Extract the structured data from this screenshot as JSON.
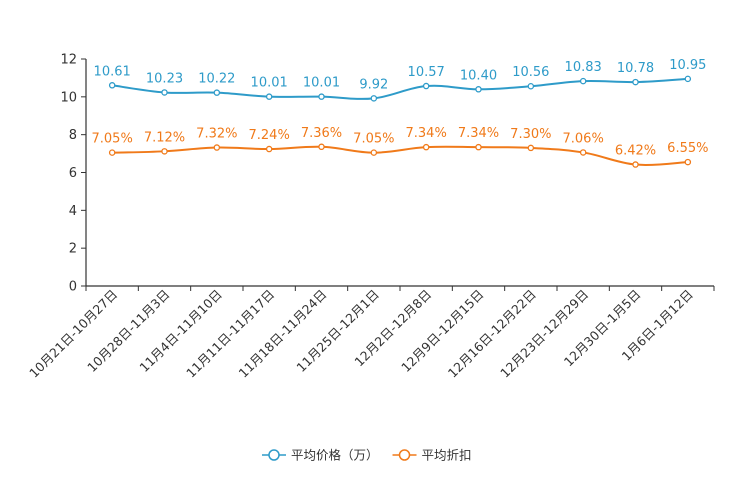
{
  "chart_data": {
    "type": "line",
    "title": "",
    "xlabel": "",
    "ylabel": "",
    "ylim": [
      0,
      12
    ],
    "yticks": [
      0,
      2,
      4,
      6,
      8,
      10,
      12
    ],
    "grid": false,
    "legend_position": "bottom",
    "categories": [
      "10月21日-10月27日",
      "10月28日-11月3日",
      "11月4日-11月10日",
      "11月11日-11月17日",
      "11月18日-11月24日",
      "11月25日-12月1日",
      "12月2日-12月8日",
      "12月9日-12月15日",
      "12月16日-12月22日",
      "12月23日-12月29日",
      "12月30日-1月5日",
      "1月6日-1月12日"
    ],
    "series": [
      {
        "name": "平均价格（万）",
        "color": "#2e9bc9",
        "values": [
          10.61,
          10.23,
          10.22,
          10.01,
          10.01,
          9.92,
          10.57,
          10.4,
          10.56,
          10.83,
          10.78,
          10.95
        ],
        "labels": [
          "10.61",
          "10.23",
          "10.22",
          "10.01",
          "10.01",
          "9.92",
          "10.57",
          "10.40",
          "10.56",
          "10.83",
          "10.78",
          "10.95"
        ]
      },
      {
        "name": "平均折扣",
        "color": "#f07a1a",
        "values": [
          7.05,
          7.12,
          7.32,
          7.24,
          7.36,
          7.05,
          7.34,
          7.34,
          7.3,
          7.06,
          6.42,
          6.55
        ],
        "labels": [
          "7.05%",
          "7.12%",
          "7.32%",
          "7.24%",
          "7.36%",
          "7.05%",
          "7.34%",
          "7.34%",
          "7.30%",
          "7.06%",
          "6.42%",
          "6.55%"
        ]
      }
    ]
  }
}
